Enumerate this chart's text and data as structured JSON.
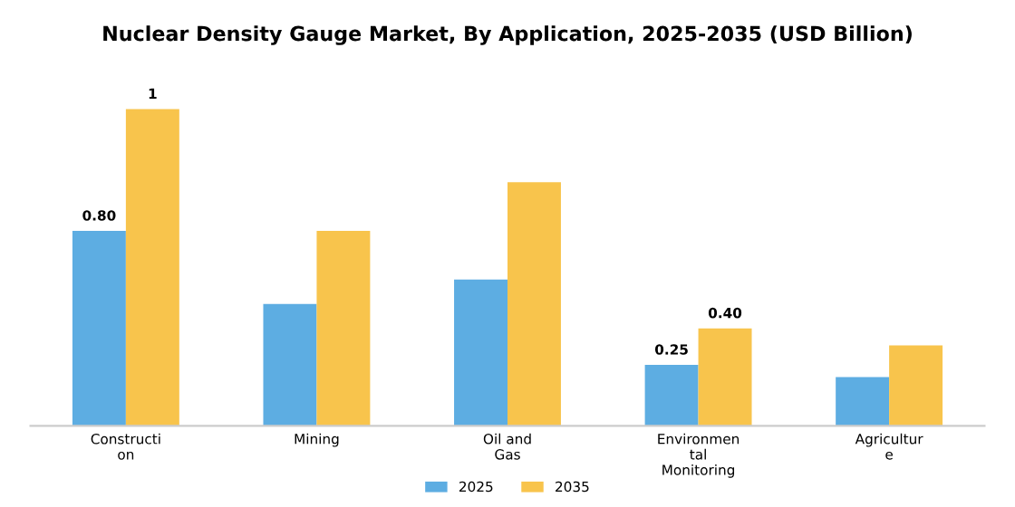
{
  "chart_data": {
    "type": "bar",
    "title": "Nuclear Density Gauge Market, By Application, 2025-2035 (USD Billion)",
    "categories": [
      "Constructi\non",
      "Mining",
      "Oil and\nGas",
      "Environmen\ntal\nMonitoring",
      "Agricultur\ne"
    ],
    "series": [
      {
        "name": "2025",
        "color": "#5dade2",
        "values": [
          0.8,
          0.5,
          0.6,
          0.25,
          0.2
        ],
        "value_labels": [
          "0.80",
          null,
          null,
          "0.25",
          null
        ]
      },
      {
        "name": "2035",
        "color": "#f8c44c",
        "values": [
          1.3,
          0.8,
          1.0,
          0.4,
          0.33
        ],
        "value_labels": [
          "1",
          null,
          null,
          "0.40",
          null
        ]
      }
    ],
    "legend": "bottom",
    "grid": false
  }
}
